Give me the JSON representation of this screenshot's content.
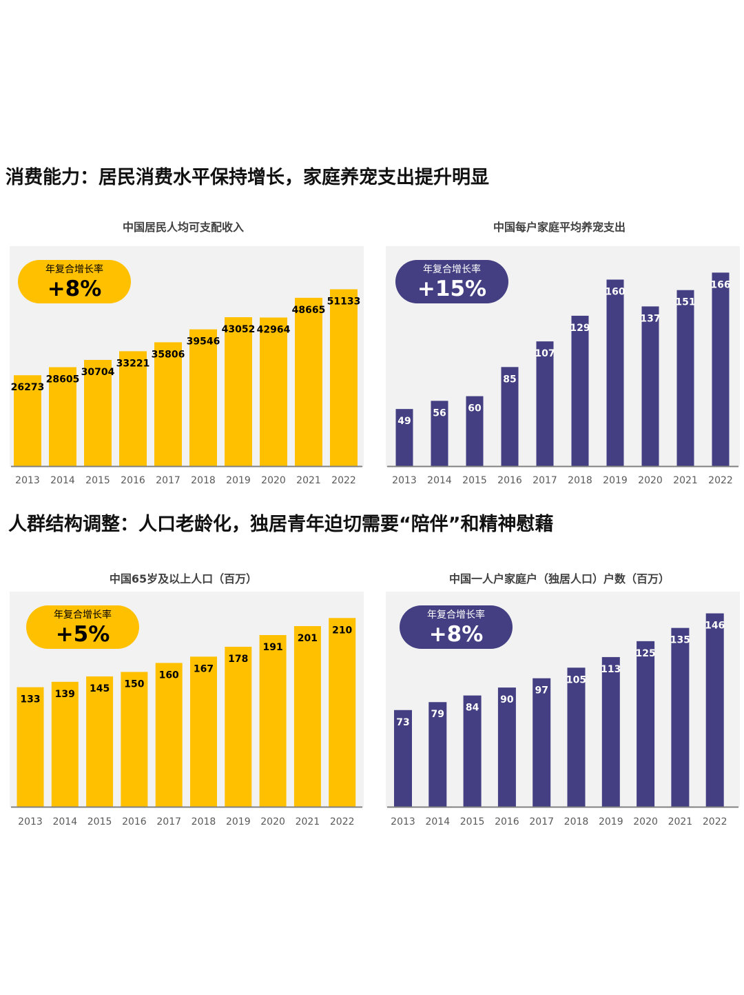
{
  "sections": [
    {
      "heading": "消费能力：居民消费水平保持增长，家庭养宠支出提升明显"
    },
    {
      "heading": "人群结构调整：人口老龄化，独居青年迫切需要“陪伴”和精神慰藉"
    }
  ],
  "colors": {
    "yellow": "#FFC000",
    "navy": "#433F82",
    "panel_bg": "#F2F2F2",
    "axis": "#808080",
    "label": "#000000"
  },
  "chart_data": [
    {
      "type": "bar",
      "title": "中国居民人均可支配收入",
      "categories": [
        "2013",
        "2014",
        "2015",
        "2016",
        "2017",
        "2018",
        "2019",
        "2020",
        "2021",
        "2022"
      ],
      "values": [
        26273,
        28605,
        30704,
        33221,
        35806,
        39546,
        43052,
        42964,
        48665,
        51133
      ],
      "ylim": [
        0,
        61000
      ],
      "color": "#FFC000",
      "badge": {
        "caption": "年复合增长率",
        "value": "+8%"
      },
      "xlabel": "",
      "ylabel": "",
      "grid": false
    },
    {
      "type": "bar",
      "title": "中国每户家庭平均养宠支出",
      "categories": [
        "2013",
        "2014",
        "2015",
        "2016",
        "2017",
        "2018",
        "2019",
        "2020",
        "2021",
        "2022"
      ],
      "values": [
        49,
        56,
        60,
        85,
        107,
        129,
        160,
        137,
        151,
        166
      ],
      "ylim": [
        0,
        181
      ],
      "color": "#433F82",
      "badge": {
        "caption": "年复合增长率",
        "value": "+15%"
      },
      "xlabel": "",
      "ylabel": "",
      "grid": false
    },
    {
      "type": "bar",
      "title": "中国65岁及以上人口（百万）",
      "categories": [
        "2013",
        "2014",
        "2015",
        "2016",
        "2017",
        "2018",
        "2019",
        "2020",
        "2021",
        "2022"
      ],
      "values": [
        133,
        139,
        145,
        150,
        160,
        167,
        178,
        191,
        201,
        210
      ],
      "ylim": [
        0,
        224
      ],
      "color": "#FFC000",
      "badge": {
        "caption": "年复合增长率",
        "value": "+5%"
      },
      "xlabel": "",
      "ylabel": "",
      "grid": false
    },
    {
      "type": "bar",
      "title": "中国一人户家庭户（独居人口）户数（百万）",
      "categories": [
        "2013",
        "2014",
        "2015",
        "2016",
        "2017",
        "2018",
        "2019",
        "2020",
        "2021",
        "2022"
      ],
      "values": [
        73,
        79,
        84,
        90,
        97,
        105,
        113,
        125,
        135,
        146
      ],
      "ylim": [
        0,
        152
      ],
      "color": "#433F82",
      "badge": {
        "caption": "年复合增长率",
        "value": "+8%"
      },
      "xlabel": "",
      "ylabel": "",
      "grid": false
    }
  ]
}
